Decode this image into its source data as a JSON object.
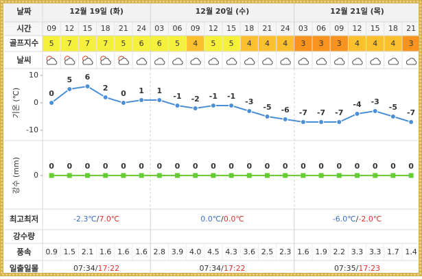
{
  "labels": {
    "date": "날짜",
    "time": "시간",
    "golf": "골프지수",
    "weather": "날씨",
    "minmax": "최고최저",
    "precip_amount": "강수량",
    "wind": "풍속",
    "sun": "일출일몰"
  },
  "days": [
    "12월 19일 (화)",
    "12월 20일 (수)",
    "12월 21일 (목)"
  ],
  "times": [
    "09",
    "12",
    "15",
    "18",
    "21",
    "24",
    "03",
    "06",
    "09",
    "12",
    "15",
    "18",
    "21",
    "24",
    "03",
    "06",
    "09",
    "12",
    "15",
    "18",
    "21"
  ],
  "golf_index": {
    "values": [
      5,
      7,
      7,
      7,
      5,
      6,
      6,
      5,
      4,
      5,
      5,
      4,
      4,
      4,
      3,
      3,
      3,
      4,
      4,
      4,
      3
    ],
    "colors": {
      "3": "#f7931e",
      "4": "#fbc02d",
      "5": "#f5f03c",
      "6": "#f5f03c",
      "7": "#f5f03c"
    }
  },
  "chart_data": [
    {
      "type": "line",
      "y_label": "기온 (℃)",
      "color": "#4a8fd6",
      "values": [
        0,
        5,
        6,
        2,
        0,
        1,
        1,
        -1,
        -2,
        -1,
        -1,
        -3,
        -5,
        -6,
        -7,
        -7,
        -7,
        -4,
        -3,
        -5,
        -7
      ],
      "ylim": [
        -12,
        12
      ],
      "yticks": [
        -10,
        0,
        10
      ]
    },
    {
      "type": "line",
      "y_label": "강수 (mm)",
      "color": "#66cc33",
      "values": [
        0,
        0,
        0,
        0,
        0,
        0,
        0,
        0,
        0,
        0,
        0,
        0,
        0,
        0,
        0,
        0,
        0,
        0,
        0,
        0,
        0
      ],
      "ylim": [
        -1,
        1
      ],
      "yticks": [
        0
      ]
    }
  ],
  "minmax": [
    {
      "min": "-2.3℃",
      "sep": "/",
      "max": "7.0℃"
    },
    {
      "min": "0.0℃",
      "sep": "/",
      "max": "0.0℃"
    },
    {
      "min": "-6.0℃",
      "sep": "/",
      "max": "-2.0℃"
    }
  ],
  "wind": [
    "0.9",
    "1.5",
    "2.1",
    "1.6",
    "1.6",
    "1.6",
    "2.8",
    "3.9",
    "4.0",
    "4.5",
    "4.3",
    "3.6",
    "2.5",
    "2.3",
    "1.6",
    "1.9",
    "2.2",
    "3.3",
    "3.3",
    "1.7",
    "1.4"
  ],
  "sun": [
    {
      "sunrise": "07:34",
      "sep": "/",
      "sunset": "17:22"
    },
    {
      "sunrise": "07:34",
      "sep": "/",
      "sunset": "17:22"
    },
    {
      "sunrise": "07:35",
      "sep": "/",
      "sunset": "17:23"
    }
  ]
}
